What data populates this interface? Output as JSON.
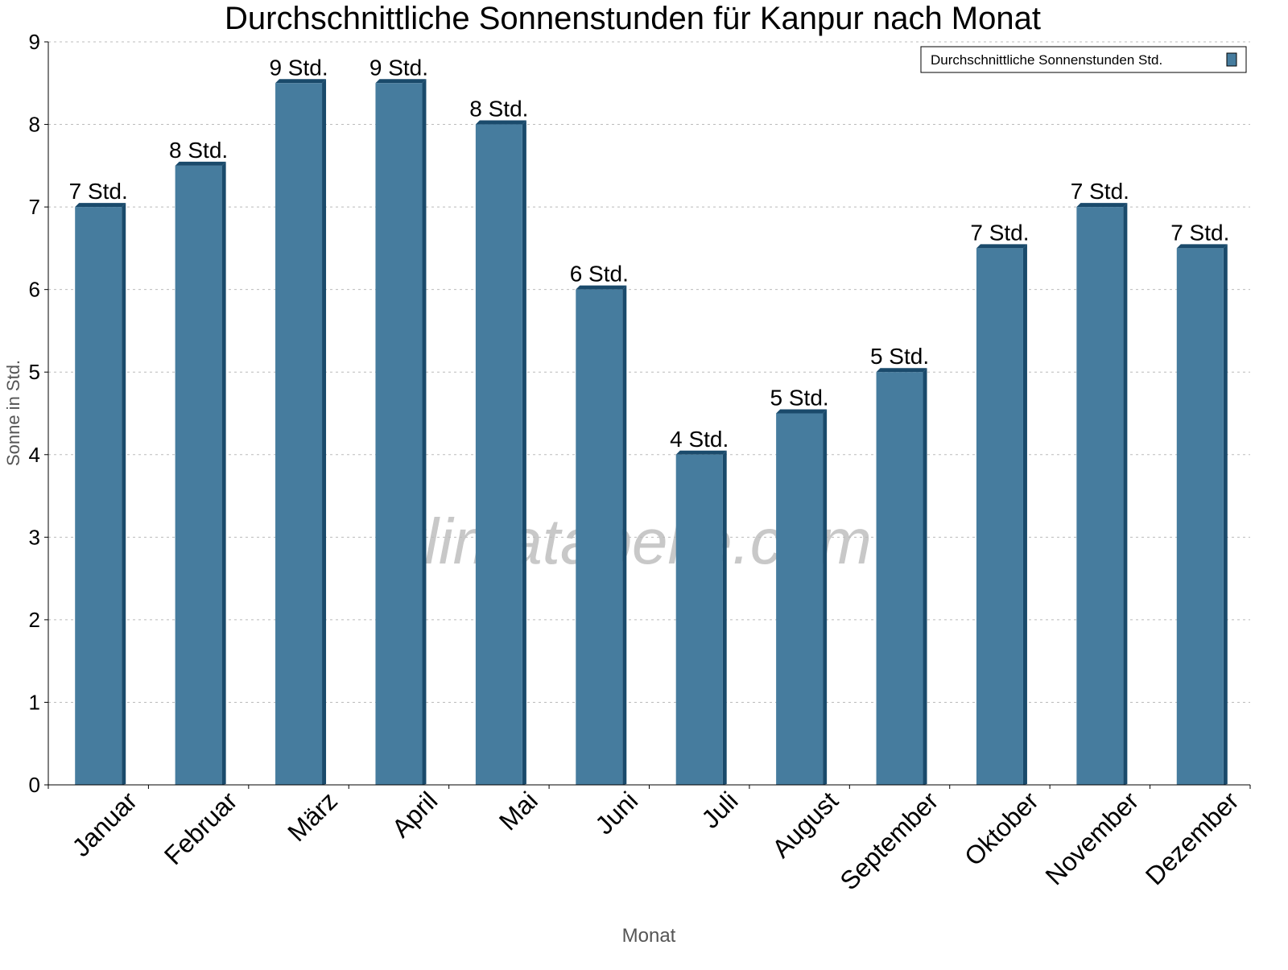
{
  "chart_data": {
    "type": "bar",
    "title": "Durchschnittliche Sonnenstunden für Kanpur nach Monat",
    "xlabel": "Monat",
    "ylabel": "Sonne in Std.",
    "ylim": [
      0,
      9
    ],
    "yticks": [
      0,
      1,
      2,
      3,
      4,
      5,
      6,
      7,
      8,
      9
    ],
    "grid": true,
    "legend_placement": "top-right",
    "categories": [
      "Januar",
      "Februar",
      "März",
      "April",
      "Mai",
      "Juni",
      "Juli",
      "August",
      "September",
      "Oktober",
      "November",
      "Dezember"
    ],
    "series": [
      {
        "name": "Durchschnittliche Sonnenstunden Std.",
        "values": [
          7,
          7.5,
          8.5,
          8.5,
          8,
          6,
          4,
          4.5,
          5,
          6.5,
          7,
          6.5
        ],
        "labels": [
          "7 Std.",
          "8 Std.",
          "9 Std.",
          "9 Std.",
          "8 Std.",
          "6 Std.",
          "4 Std.",
          "5 Std.",
          "5 Std.",
          "7 Std.",
          "7 Std.",
          "7 Std."
        ],
        "color": "#467c9e",
        "edge_color": "#1a4a6b"
      }
    ],
    "watermark": "klimatabelle.com"
  }
}
